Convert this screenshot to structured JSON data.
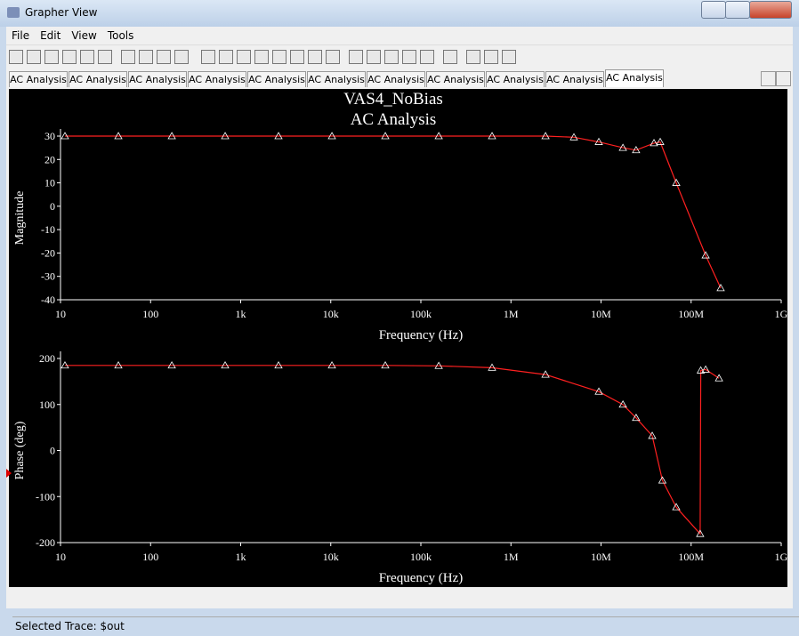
{
  "window": {
    "title": "Grapher View"
  },
  "menu": [
    "File",
    "Edit",
    "View",
    "Tools"
  ],
  "tabs": [
    "AC Analysis",
    "AC Analysis",
    "AC Analysis",
    "AC Analysis",
    "AC Analysis",
    "AC Analysis",
    "AC Analysis",
    "AC Analysis",
    "AC Analysis",
    "AC Analysis",
    "AC Analysis"
  ],
  "status": "Selected Trace:  $out",
  "chart_data": [
    {
      "type": "line",
      "title": "VAS4_NoBias",
      "subtitle": "AC Analysis",
      "x_label": "Frequency (Hz)",
      "y_label": "Magnitude",
      "log_x": true,
      "color": "#ff2020",
      "x": [
        11.2,
        43.9,
        172,
        672,
        2630,
        10300,
        40300,
        158000,
        617000,
        2420000,
        5000000,
        9450000,
        17500000,
        24500000,
        38700000,
        45400000,
        68400000,
        145000000,
        213000000
      ],
      "values": [
        30,
        30,
        30,
        30,
        30,
        30,
        30,
        30,
        30,
        30,
        29.5,
        27.5,
        25,
        24,
        27,
        27.5,
        10,
        -21,
        -35
      ],
      "xlim": [
        10,
        1000000000
      ],
      "xticks": [
        10,
        100,
        {
          "value": 1000,
          "label": "1k"
        },
        {
          "value": 10000,
          "label": "10k"
        },
        {
          "value": 100000,
          "label": "100k"
        },
        {
          "value": 1000000,
          "label": "1M"
        },
        {
          "value": 10000000,
          "label": "10M"
        },
        {
          "value": 100000000,
          "label": "100M"
        },
        {
          "value": 1000000000,
          "label": "1G"
        }
      ],
      "ylim": [
        -40,
        30
      ],
      "yticks": [
        -40,
        -30,
        -20,
        -10,
        0,
        10,
        20,
        30
      ]
    },
    {
      "type": "line",
      "x_label": "Frequency (Hz)",
      "y_label": "Phase (deg)",
      "log_x": true,
      "color": "#ff2020",
      "x": [
        11.2,
        43.9,
        172,
        672,
        2630,
        10300,
        40300,
        158000,
        617000,
        2420000,
        9450000,
        17500000,
        24500000,
        37000000,
        48000000,
        68400000,
        126000000,
        128000000,
        145000000,
        204000000
      ],
      "values": [
        185,
        185,
        185,
        185,
        185,
        185,
        185,
        184,
        180,
        165,
        128,
        100,
        71,
        32,
        -65,
        -123,
        -181,
        174,
        176,
        157
      ],
      "xlim": [
        10,
        1000000000
      ],
      "xticks": [
        10,
        100,
        {
          "value": 1000,
          "label": "1k"
        },
        {
          "value": 10000,
          "label": "10k"
        },
        {
          "value": 100000,
          "label": "100k"
        },
        {
          "value": 1000000,
          "label": "1M"
        },
        {
          "value": 10000000,
          "label": "10M"
        },
        {
          "value": 100000000,
          "label": "100M"
        },
        {
          "value": 1000000000,
          "label": "1G"
        }
      ],
      "ylim": [
        -200,
        200
      ],
      "yticks": [
        -200,
        -100,
        0,
        100,
        200
      ]
    }
  ]
}
